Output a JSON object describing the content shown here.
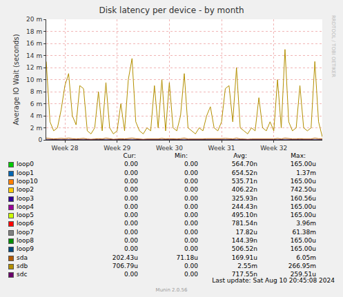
{
  "chart_data": {
    "type": "line",
    "title": "Disk latency per device - by month",
    "y_label": "Average IO Wait (seconds)",
    "watermark": "RRDTOOL / TOBI OETIKER",
    "last_update": "Last update: Sat Aug 10 20:45:08 2024",
    "footer": "Munin 2.0.56",
    "grid": true,
    "ylim": [
      0,
      0.02
    ],
    "yticks": [
      0,
      {
        "value": 0.002,
        "label": "2 m"
      },
      {
        "value": 0.004,
        "label": "4 m"
      },
      {
        "value": 0.006,
        "label": "6 m"
      },
      {
        "value": 0.008,
        "label": "8 m"
      },
      {
        "value": 0.01,
        "label": "10 m"
      },
      {
        "value": 0.012,
        "label": "12 m"
      },
      {
        "value": 0.014,
        "label": "14 m"
      },
      {
        "value": 0.016,
        "label": "16 m"
      },
      {
        "value": 0.018,
        "label": "18 m"
      },
      {
        "value": 0.02,
        "label": "20 m"
      }
    ],
    "categories": [
      null,
      null,
      null,
      null,
      null,
      "Week 28",
      null,
      null,
      null,
      null,
      null,
      null,
      null,
      null,
      null,
      null,
      null,
      null,
      null,
      "Week 29",
      null,
      null,
      null,
      null,
      null,
      null,
      null,
      null,
      null,
      null,
      null,
      null,
      null,
      "Week 30",
      null,
      null,
      null,
      null,
      null,
      null,
      null,
      null,
      null,
      null,
      null,
      null,
      null,
      "Week 31",
      null,
      null,
      null,
      null,
      null,
      null,
      null,
      null,
      null,
      null,
      null,
      null,
      null,
      "Week 32",
      null,
      null,
      null,
      null,
      null,
      null,
      null,
      null,
      null,
      null,
      null,
      null,
      null
    ],
    "stat_headers": [
      "Cur:",
      "Min:",
      "Avg:",
      "Max:"
    ],
    "series": [
      {
        "name": "loop0",
        "color": "#00CC00",
        "stats": [
          "0.00",
          "0.00",
          "564.70n",
          "165.00u"
        ],
        "values": [
          0,
          0,
          0,
          0,
          0,
          0,
          0,
          0,
          0,
          0,
          0,
          0,
          0,
          0,
          0,
          0,
          0,
          0,
          0,
          0,
          0,
          0,
          0,
          0,
          0,
          0,
          0,
          0,
          0,
          0,
          0,
          0,
          0,
          0,
          0,
          0,
          0,
          0,
          0,
          0,
          0,
          0,
          0,
          0,
          0,
          0,
          0,
          0,
          0,
          0,
          0,
          0,
          0,
          0,
          0,
          0,
          0,
          0,
          0,
          0,
          0,
          0,
          0,
          0,
          0,
          0,
          0,
          0,
          0,
          0,
          0,
          0,
          0,
          0,
          0
        ]
      },
      {
        "name": "loop1",
        "color": "#0066B3",
        "stats": [
          "0.00",
          "0.00",
          "654.52n",
          "1.37m"
        ],
        "values": [
          0,
          0,
          0,
          0,
          0,
          0,
          0,
          0,
          0,
          0,
          0,
          0,
          0,
          0,
          0,
          0,
          0,
          0,
          0,
          0,
          0,
          0,
          0,
          0,
          0,
          0,
          0,
          0,
          0,
          0,
          0,
          0,
          0,
          0,
          0,
          0,
          0,
          0,
          0,
          0,
          0,
          0,
          0,
          0,
          0,
          0,
          0,
          0,
          0,
          0,
          0,
          0,
          0,
          0,
          0,
          0,
          0,
          0,
          0,
          0,
          0,
          0,
          0,
          0,
          0,
          0,
          0,
          0,
          0,
          0,
          0,
          0,
          0,
          0,
          0
        ]
      },
      {
        "name": "loop10",
        "color": "#FF8000",
        "stats": [
          "0.00",
          "0.00",
          "535.71n",
          "165.00u"
        ],
        "values": [
          0,
          0,
          0,
          0,
          0,
          0,
          0,
          0,
          0,
          0,
          0,
          0,
          0,
          0,
          0,
          0,
          0,
          0,
          0,
          0,
          0,
          0,
          0,
          0,
          0,
          0,
          0,
          0,
          0,
          0,
          0,
          0,
          0,
          0,
          0,
          0,
          0,
          0,
          0,
          0,
          0,
          0,
          0,
          0,
          0,
          0,
          0,
          0,
          0,
          0,
          0,
          0,
          0,
          0,
          0,
          0,
          0,
          0,
          0,
          0,
          0,
          0,
          0,
          0,
          0,
          0,
          0,
          0,
          0,
          0,
          0,
          0,
          0,
          0,
          0
        ]
      },
      {
        "name": "loop2",
        "color": "#FFCC00",
        "stats": [
          "0.00",
          "0.00",
          "406.22n",
          "742.50u"
        ],
        "values": [
          0,
          0,
          0,
          0,
          0,
          0,
          0,
          0,
          0,
          0,
          0,
          0,
          0,
          0,
          0,
          0,
          0,
          0,
          0,
          0,
          0,
          0,
          0,
          0,
          0,
          0,
          0,
          0,
          0,
          0,
          0,
          0,
          0,
          0,
          0,
          0,
          0,
          0,
          0,
          0,
          0,
          0,
          0,
          0,
          0,
          0,
          0,
          0,
          0,
          0,
          0,
          0,
          0,
          0,
          0,
          0,
          0,
          0,
          0,
          0,
          0,
          0,
          0,
          0,
          0,
          0,
          0,
          0,
          0,
          0,
          0,
          0,
          0,
          0,
          0
        ]
      },
      {
        "name": "loop3",
        "color": "#330099",
        "stats": [
          "0.00",
          "0.00",
          "325.93n",
          "160.56u"
        ],
        "values": [
          0,
          0,
          0,
          0,
          0,
          0,
          0,
          0,
          0,
          0,
          0,
          0,
          0,
          0,
          0,
          0,
          0,
          0,
          0,
          0,
          0,
          0,
          0,
          0,
          0,
          0,
          0,
          0,
          0,
          0,
          0,
          0,
          0,
          0,
          0,
          0,
          0,
          0,
          0,
          0,
          0,
          0,
          0,
          0,
          0,
          0,
          0,
          0,
          0,
          0,
          0,
          0,
          0,
          0,
          0,
          0,
          0,
          0,
          0,
          0,
          0,
          0,
          0,
          0,
          0,
          0,
          0,
          0,
          0,
          0,
          0,
          0,
          0,
          0,
          0
        ]
      },
      {
        "name": "loop4",
        "color": "#990099",
        "stats": [
          "0.00",
          "0.00",
          "244.43n",
          "165.00u"
        ],
        "values": [
          0,
          0,
          0,
          0,
          0,
          0,
          0,
          0,
          0,
          0,
          0,
          0,
          0,
          0,
          0,
          0,
          0,
          0,
          0,
          0,
          0,
          0,
          0,
          0,
          0,
          0,
          0,
          0,
          0,
          0,
          0,
          0,
          0,
          0,
          0,
          0,
          0,
          0,
          0,
          0,
          0,
          0,
          0,
          0,
          0,
          0,
          0,
          0,
          0,
          0,
          0,
          0,
          0,
          0,
          0,
          0,
          0,
          0,
          0,
          0,
          0,
          0,
          0,
          0,
          0,
          0,
          0,
          0,
          0,
          0,
          0,
          0,
          0,
          0,
          0
        ]
      },
      {
        "name": "loop5",
        "color": "#CCFF00",
        "stats": [
          "0.00",
          "0.00",
          "495.10n",
          "165.00u"
        ],
        "values": [
          0,
          0,
          0,
          0,
          0,
          0,
          0,
          0,
          0,
          0,
          0,
          0,
          0,
          0,
          0,
          0,
          0,
          0,
          0,
          0,
          0,
          0,
          0,
          0,
          0,
          0,
          0,
          0,
          0,
          0,
          0,
          0,
          0,
          0,
          0,
          0,
          0,
          0,
          0,
          0,
          0,
          0,
          0,
          0,
          0,
          0,
          0,
          0,
          0,
          0,
          0,
          0,
          0,
          0,
          0,
          0,
          0,
          0,
          0,
          0,
          0,
          0,
          0,
          0,
          0,
          0,
          0,
          0,
          0,
          0,
          0,
          0,
          0,
          0,
          0
        ]
      },
      {
        "name": "loop6",
        "color": "#FF0000",
        "stats": [
          "0.00",
          "0.00",
          "781.54n",
          "3.96m"
        ],
        "values": [
          0,
          0,
          0,
          0,
          0,
          0,
          0,
          0,
          0,
          0,
          0,
          0,
          0,
          0,
          0,
          0,
          0,
          0,
          0,
          0,
          0,
          0,
          0,
          0,
          0,
          0,
          0,
          0,
          0,
          0,
          0,
          0,
          0,
          0,
          0,
          0,
          0,
          0,
          0,
          0,
          0,
          0,
          0,
          0,
          0,
          0,
          0,
          0,
          0,
          0,
          0,
          0,
          0,
          0,
          0,
          0,
          0,
          0,
          0,
          0,
          0,
          0,
          0,
          0,
          0,
          0,
          0,
          0,
          0,
          0,
          0,
          0,
          0,
          0,
          0
        ]
      },
      {
        "name": "loop7",
        "color": "#808080",
        "stats": [
          "0.00",
          "0.00",
          "17.82u",
          "61.38m"
        ],
        "values": [
          0,
          0,
          0,
          0,
          0,
          0,
          0,
          0,
          0,
          0,
          0,
          0,
          0,
          0,
          0,
          0,
          0,
          0,
          0,
          0,
          0,
          0,
          0,
          0,
          0,
          0,
          0,
          0,
          0,
          0,
          0,
          0,
          0,
          0,
          0,
          0,
          0,
          0,
          0,
          0,
          0,
          0,
          0,
          0,
          0,
          0,
          0,
          0,
          0,
          0,
          0,
          0,
          0,
          0,
          0,
          0,
          0,
          0,
          0,
          0,
          0,
          0,
          0,
          0,
          0,
          0,
          0,
          0,
          0,
          0,
          0,
          0,
          0,
          0,
          0
        ]
      },
      {
        "name": "loop8",
        "color": "#008F00",
        "stats": [
          "0.00",
          "0.00",
          "144.39n",
          "165.00u"
        ],
        "values": [
          0,
          0,
          0,
          0,
          0,
          0,
          0,
          0,
          0,
          0,
          0,
          0,
          0,
          0,
          0,
          0,
          0,
          0,
          0,
          0,
          0,
          0,
          0,
          0,
          0,
          0,
          0,
          0,
          0,
          0,
          0,
          0,
          0,
          0,
          0,
          0,
          0,
          0,
          0,
          0,
          0,
          0,
          0,
          0,
          0,
          0,
          0,
          0,
          0,
          0,
          0,
          0,
          0,
          0,
          0,
          0,
          0,
          0,
          0,
          0,
          0,
          0,
          0,
          0,
          0,
          0,
          0,
          0,
          0,
          0,
          0,
          0,
          0,
          0,
          0
        ]
      },
      {
        "name": "loop9",
        "color": "#00487D",
        "stats": [
          "0.00",
          "0.00",
          "506.52n",
          "165.00u"
        ],
        "values": [
          0,
          0,
          0,
          0,
          0,
          0,
          0,
          0,
          0,
          0,
          0,
          0,
          0,
          0,
          0,
          0,
          0,
          0,
          0,
          0,
          0,
          0,
          0,
          0,
          0,
          0,
          0,
          0,
          0,
          0,
          0,
          0,
          0,
          0,
          0,
          0,
          0,
          0,
          0,
          0,
          0,
          0,
          0,
          0,
          0,
          0,
          0,
          0,
          0,
          0,
          0,
          0,
          0,
          0,
          0,
          0,
          0,
          0,
          0,
          0,
          0,
          0,
          0,
          0,
          0,
          0,
          0,
          0,
          0,
          0,
          0,
          0,
          0,
          0,
          0
        ]
      },
      {
        "name": "sda",
        "color": "#B35A00",
        "stats": [
          "202.43u",
          "71.18u",
          "169.91u",
          "6.05m"
        ],
        "values": [
          0.0003,
          0.0002,
          0.00015,
          0.0002,
          0.00025,
          0.0002,
          0.0003,
          0.0002,
          0.00015,
          0.0002,
          0.00025,
          0.00015,
          0.0001,
          0.00015,
          0.0002,
          0.00015,
          0.0003,
          0.0002,
          0.0001,
          0.00015,
          0.0002,
          0.00015,
          0.00025,
          0.0003,
          0.0002,
          0.00015,
          0.0001,
          0.00015,
          0.00015,
          0.0002,
          0.00015,
          0.00025,
          0.00015,
          0.0002,
          0.00015,
          0.00015,
          0.0002,
          0.0003,
          0.00015,
          0.00015,
          0.0001,
          0.00015,
          0.00015,
          0.0002,
          0.0002,
          0.00015,
          0.00015,
          0.0002,
          0.00025,
          0.0002,
          0.00015,
          0.0003,
          0.00015,
          0.00015,
          0.0001,
          0.00015,
          0.00015,
          0.0002,
          0.00015,
          0.00015,
          0.0002,
          0.00015,
          0.00025,
          0.00015,
          0.0003,
          0.0002,
          0.00015,
          0.00015,
          0.0002,
          0.00015,
          0.00015,
          0.00015,
          0.0003,
          0.0002,
          0.0002
        ]
      },
      {
        "name": "sdb",
        "color": "#B38F00",
        "stats": [
          "706.79u",
          "0.00",
          "2.55m",
          "266.95m"
        ],
        "values": [
          0.013,
          0.003,
          0.0015,
          0.002,
          0.005,
          0.009,
          0.011,
          0.004,
          0.0025,
          0.009,
          0.0085,
          0.0015,
          0.001,
          0.002,
          0.008,
          0.0015,
          0.0095,
          0.002,
          0.001,
          0.0015,
          0.006,
          0.0015,
          0.01,
          0.0135,
          0.003,
          0.0015,
          0.001,
          0.002,
          0.0015,
          0.009,
          0.002,
          0.01,
          0.0015,
          0.0095,
          0.002,
          0.0015,
          0.004,
          0.011,
          0.002,
          0.0015,
          0.001,
          0.002,
          0.0015,
          0.004,
          0.0055,
          0.002,
          0.0015,
          0.003,
          0.0085,
          0.009,
          0.003,
          0.012,
          0.002,
          0.0015,
          0.001,
          0.002,
          0.0015,
          0.007,
          0.002,
          0.0015,
          0.003,
          0.0015,
          0.01,
          0.002,
          0.015,
          0.003,
          0.0015,
          0.002,
          0.009,
          0.002,
          0.0015,
          0.002,
          0.013,
          0.003,
          0.0005
        ]
      },
      {
        "name": "sdc",
        "color": "#6B006B",
        "stats": [
          "0.00",
          "0.00",
          "717.55n",
          "259.51u"
        ],
        "values": [
          0,
          0,
          0,
          0,
          0,
          0,
          0,
          0,
          0,
          0,
          0,
          0,
          0,
          0,
          0,
          0,
          0,
          0,
          0,
          0,
          0,
          0,
          0,
          0,
          0,
          0,
          0,
          0,
          0,
          0,
          0,
          0,
          0,
          0,
          0,
          0,
          0,
          0,
          0,
          0,
          0,
          0,
          0,
          0,
          0,
          0,
          0,
          0,
          0,
          0,
          0,
          0,
          0,
          0,
          0,
          0,
          0,
          0,
          0,
          0,
          0,
          0,
          0,
          0,
          0,
          0,
          0,
          0,
          0,
          0,
          0,
          0,
          0,
          0,
          0
        ]
      }
    ]
  }
}
